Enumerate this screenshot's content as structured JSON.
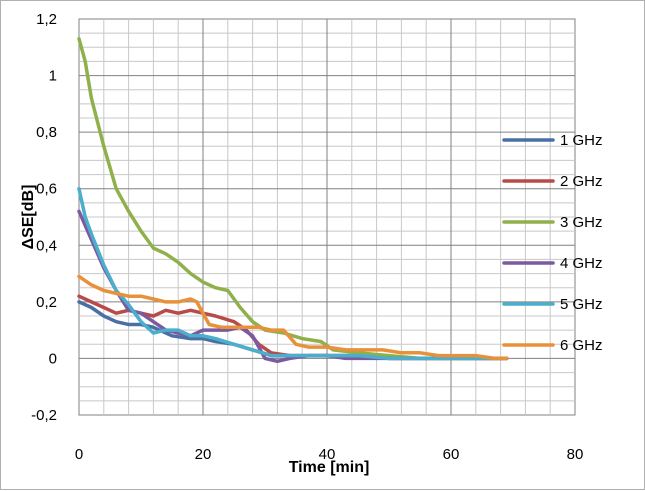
{
  "chart_data": {
    "type": "line",
    "title": "",
    "xlabel": "Time [min]",
    "ylabel": "ΔSE[dB]",
    "xlim": [
      0,
      80
    ],
    "ylim": [
      -0.2,
      1.2
    ],
    "x_ticks": [
      "0",
      "20",
      "40",
      "60",
      "80"
    ],
    "y_ticks": [
      "-0,2",
      "0",
      "0,2",
      "0,4",
      "0,6",
      "0,8",
      "1",
      "1,2"
    ],
    "grid": true,
    "legend_position": "right",
    "series": [
      {
        "name": "1 GHz",
        "color": "#4a6fa5",
        "points": [
          [
            0,
            0.2
          ],
          [
            2,
            0.18
          ],
          [
            4,
            0.15
          ],
          [
            6,
            0.13
          ],
          [
            8,
            0.12
          ],
          [
            10,
            0.12
          ],
          [
            12,
            0.11
          ],
          [
            15,
            0.08
          ],
          [
            18,
            0.07
          ],
          [
            20,
            0.07
          ],
          [
            22,
            0.06
          ],
          [
            25,
            0.05
          ],
          [
            28,
            0.03
          ],
          [
            31,
            0.01
          ],
          [
            34,
            0.01
          ],
          [
            37,
            0.01
          ],
          [
            40,
            0.01
          ],
          [
            45,
            0.01
          ],
          [
            50,
            0.0
          ],
          [
            55,
            0.0
          ],
          [
            60,
            0.0
          ],
          [
            65,
            0.0
          ],
          [
            69,
            0.0
          ]
        ]
      },
      {
        "name": "2 GHz",
        "color": "#b84a4a",
        "points": [
          [
            0,
            0.22
          ],
          [
            2,
            0.2
          ],
          [
            4,
            0.18
          ],
          [
            6,
            0.16
          ],
          [
            8,
            0.17
          ],
          [
            10,
            0.16
          ],
          [
            12,
            0.15
          ],
          [
            14,
            0.17
          ],
          [
            16,
            0.16
          ],
          [
            18,
            0.17
          ],
          [
            20,
            0.16
          ],
          [
            22,
            0.15
          ],
          [
            25,
            0.13
          ],
          [
            27,
            0.1
          ],
          [
            29,
            0.05
          ],
          [
            31,
            0.02
          ],
          [
            34,
            0.01
          ],
          [
            37,
            0.01
          ],
          [
            40,
            0.01
          ],
          [
            45,
            0.01
          ],
          [
            50,
            0.0
          ],
          [
            55,
            0.0
          ],
          [
            60,
            0.0
          ],
          [
            65,
            0.0
          ],
          [
            69,
            0.0
          ]
        ]
      },
      {
        "name": "3 GHz",
        "color": "#8fb04a",
        "points": [
          [
            0,
            1.13
          ],
          [
            1,
            1.05
          ],
          [
            2,
            0.92
          ],
          [
            4,
            0.75
          ],
          [
            6,
            0.6
          ],
          [
            8,
            0.52
          ],
          [
            10,
            0.45
          ],
          [
            12,
            0.39
          ],
          [
            14,
            0.37
          ],
          [
            16,
            0.34
          ],
          [
            18,
            0.3
          ],
          [
            20,
            0.27
          ],
          [
            22,
            0.25
          ],
          [
            24,
            0.24
          ],
          [
            26,
            0.18
          ],
          [
            28,
            0.13
          ],
          [
            30,
            0.1
          ],
          [
            33,
            0.09
          ],
          [
            36,
            0.07
          ],
          [
            39,
            0.06
          ],
          [
            41,
            0.03
          ],
          [
            45,
            0.02
          ],
          [
            50,
            0.01
          ],
          [
            55,
            0.0
          ],
          [
            60,
            0.0
          ],
          [
            65,
            0.0
          ],
          [
            69,
            0.0
          ]
        ]
      },
      {
        "name": "4 GHz",
        "color": "#7b5aa0",
        "points": [
          [
            0,
            0.52
          ],
          [
            2,
            0.42
          ],
          [
            4,
            0.32
          ],
          [
            6,
            0.24
          ],
          [
            8,
            0.17
          ],
          [
            10,
            0.16
          ],
          [
            12,
            0.13
          ],
          [
            14,
            0.1
          ],
          [
            16,
            0.09
          ],
          [
            18,
            0.08
          ],
          [
            20,
            0.1
          ],
          [
            22,
            0.1
          ],
          [
            24,
            0.1
          ],
          [
            26,
            0.11
          ],
          [
            28,
            0.08
          ],
          [
            30,
            0.0
          ],
          [
            32,
            -0.01
          ],
          [
            34,
            0.0
          ],
          [
            37,
            0.01
          ],
          [
            40,
            0.01
          ],
          [
            43,
            0.0
          ],
          [
            50,
            0.0
          ],
          [
            55,
            0.0
          ],
          [
            60,
            0.0
          ],
          [
            65,
            0.0
          ],
          [
            69,
            0.0
          ]
        ]
      },
      {
        "name": "5 GHz",
        "color": "#4aaecc",
        "points": [
          [
            0,
            0.6
          ],
          [
            1,
            0.5
          ],
          [
            2,
            0.44
          ],
          [
            4,
            0.33
          ],
          [
            6,
            0.24
          ],
          [
            8,
            0.19
          ],
          [
            10,
            0.13
          ],
          [
            12,
            0.09
          ],
          [
            14,
            0.1
          ],
          [
            16,
            0.1
          ],
          [
            18,
            0.08
          ],
          [
            20,
            0.08
          ],
          [
            22,
            0.07
          ],
          [
            25,
            0.05
          ],
          [
            28,
            0.03
          ],
          [
            31,
            0.01
          ],
          [
            34,
            0.01
          ],
          [
            37,
            0.01
          ],
          [
            40,
            0.01
          ],
          [
            45,
            0.01
          ],
          [
            50,
            0.0
          ],
          [
            55,
            0.0
          ],
          [
            60,
            0.0
          ],
          [
            65,
            0.0
          ],
          [
            69,
            0.0
          ]
        ]
      },
      {
        "name": "6 GHz",
        "color": "#e8913a",
        "points": [
          [
            0,
            0.29
          ],
          [
            2,
            0.26
          ],
          [
            4,
            0.24
          ],
          [
            6,
            0.23
          ],
          [
            8,
            0.22
          ],
          [
            10,
            0.22
          ],
          [
            12,
            0.21
          ],
          [
            14,
            0.2
          ],
          [
            16,
            0.2
          ],
          [
            18,
            0.21
          ],
          [
            19,
            0.2
          ],
          [
            21,
            0.12
          ],
          [
            23,
            0.11
          ],
          [
            26,
            0.11
          ],
          [
            29,
            0.11
          ],
          [
            31,
            0.1
          ],
          [
            33,
            0.1
          ],
          [
            35,
            0.05
          ],
          [
            37,
            0.04
          ],
          [
            40,
            0.04
          ],
          [
            43,
            0.03
          ],
          [
            46,
            0.03
          ],
          [
            49,
            0.03
          ],
          [
            52,
            0.02
          ],
          [
            55,
            0.02
          ],
          [
            58,
            0.01
          ],
          [
            61,
            0.01
          ],
          [
            64,
            0.01
          ],
          [
            67,
            0.0
          ],
          [
            69,
            0.0
          ]
        ]
      }
    ]
  }
}
